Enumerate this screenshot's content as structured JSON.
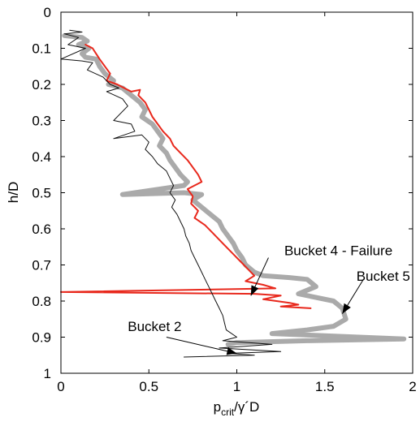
{
  "chart_data": {
    "type": "line",
    "title": "",
    "xlabel": {
      "main": "p",
      "sub": "crit",
      "rest": "/γ´D"
    },
    "ylabel": "h/D",
    "xlim": [
      0,
      2
    ],
    "ylim": [
      0,
      1
    ],
    "y_inverted": true,
    "grid": false,
    "xticks": [
      "0",
      "0.5",
      "1",
      "1.5",
      "2"
    ],
    "xtick_values": [
      0,
      0.5,
      1,
      1.5,
      2
    ],
    "yticks": [
      "0",
      "0.1",
      "0.2",
      "0.3",
      "0.4",
      "0.5",
      "0.6",
      "0.7",
      "0.8",
      "0.9",
      "1"
    ],
    "ytick_values": [
      0,
      0.1,
      0.2,
      0.3,
      0.4,
      0.5,
      0.6,
      0.7,
      0.8,
      0.9,
      1.0
    ],
    "series": [
      {
        "name": "Bucket 5",
        "color": "#aaaaaa",
        "width": 6,
        "points": [
          [
            0.02,
            0.065
          ],
          [
            0.12,
            0.07
          ],
          [
            0.15,
            0.08
          ],
          [
            0.1,
            0.09
          ],
          [
            0.16,
            0.1
          ],
          [
            0.12,
            0.115
          ],
          [
            0.14,
            0.125
          ],
          [
            0.2,
            0.13
          ],
          [
            0.22,
            0.15
          ],
          [
            0.25,
            0.17
          ],
          [
            0.3,
            0.19
          ],
          [
            0.27,
            0.2
          ],
          [
            0.35,
            0.21
          ],
          [
            0.4,
            0.23
          ],
          [
            0.45,
            0.25
          ],
          [
            0.48,
            0.27
          ],
          [
            0.46,
            0.29
          ],
          [
            0.52,
            0.31
          ],
          [
            0.55,
            0.33
          ],
          [
            0.58,
            0.35
          ],
          [
            0.56,
            0.37
          ],
          [
            0.6,
            0.39
          ],
          [
            0.62,
            0.41
          ],
          [
            0.65,
            0.43
          ],
          [
            0.68,
            0.45
          ],
          [
            0.72,
            0.47
          ],
          [
            0.7,
            0.48
          ],
          [
            0.35,
            0.505
          ],
          [
            0.7,
            0.5
          ],
          [
            0.8,
            0.505
          ],
          [
            0.75,
            0.52
          ],
          [
            0.8,
            0.54
          ],
          [
            0.85,
            0.56
          ],
          [
            0.9,
            0.58
          ],
          [
            0.92,
            0.6
          ],
          [
            0.95,
            0.62
          ],
          [
            0.98,
            0.64
          ],
          [
            1.0,
            0.66
          ],
          [
            1.03,
            0.68
          ],
          [
            1.05,
            0.7
          ],
          [
            1.1,
            0.72
          ],
          [
            1.15,
            0.73
          ],
          [
            1.3,
            0.735
          ],
          [
            1.4,
            0.74
          ],
          [
            1.45,
            0.76
          ],
          [
            1.35,
            0.78
          ],
          [
            1.55,
            0.8
          ],
          [
            1.6,
            0.82
          ],
          [
            1.62,
            0.85
          ],
          [
            1.55,
            0.87
          ],
          [
            1.4,
            0.88
          ],
          [
            1.2,
            0.89
          ],
          [
            1.95,
            0.905
          ],
          [
            1.4,
            0.91
          ],
          [
            1.0,
            0.915
          ],
          [
            0.95,
            0.92
          ]
        ]
      },
      {
        "name": "Bucket 4 - Failure",
        "color": "#e8281c",
        "width": 2,
        "points": [
          [
            0.14,
            0.09
          ],
          [
            0.18,
            0.1
          ],
          [
            0.2,
            0.115
          ],
          [
            0.22,
            0.13
          ],
          [
            0.25,
            0.15
          ],
          [
            0.28,
            0.17
          ],
          [
            0.26,
            0.19
          ],
          [
            0.32,
            0.2
          ],
          [
            0.36,
            0.21
          ],
          [
            0.4,
            0.22
          ],
          [
            0.45,
            0.215
          ],
          [
            0.44,
            0.23
          ],
          [
            0.48,
            0.25
          ],
          [
            0.5,
            0.27
          ],
          [
            0.52,
            0.29
          ],
          [
            0.55,
            0.31
          ],
          [
            0.58,
            0.33
          ],
          [
            0.62,
            0.35
          ],
          [
            0.64,
            0.37
          ],
          [
            0.68,
            0.39
          ],
          [
            0.72,
            0.41
          ],
          [
            0.75,
            0.43
          ],
          [
            0.78,
            0.45
          ],
          [
            0.8,
            0.47
          ],
          [
            0.72,
            0.49
          ],
          [
            0.75,
            0.51
          ],
          [
            0.74,
            0.53
          ],
          [
            0.78,
            0.55
          ],
          [
            0.76,
            0.57
          ],
          [
            0.82,
            0.59
          ],
          [
            0.86,
            0.61
          ],
          [
            0.9,
            0.63
          ],
          [
            0.94,
            0.65
          ],
          [
            0.98,
            0.67
          ],
          [
            1.02,
            0.69
          ],
          [
            1.06,
            0.71
          ],
          [
            1.1,
            0.73
          ],
          [
            1.05,
            0.745
          ],
          [
            1.15,
            0.755
          ],
          [
            1.22,
            0.765
          ],
          [
            0.0,
            0.775
          ],
          [
            1.1,
            0.78
          ],
          [
            1.25,
            0.785
          ],
          [
            1.15,
            0.795
          ],
          [
            1.3,
            0.805
          ],
          [
            1.35,
            0.81
          ],
          [
            1.25,
            0.815
          ],
          [
            1.42,
            0.82
          ]
        ]
      },
      {
        "name": "Bucket 2",
        "color": "#111111",
        "width": 1,
        "points": [
          [
            0.05,
            0.05
          ],
          [
            0.12,
            0.055
          ],
          [
            0.02,
            0.06
          ],
          [
            0.1,
            0.07
          ],
          [
            0.04,
            0.09
          ],
          [
            0.14,
            0.1
          ],
          [
            0.0,
            0.13
          ],
          [
            0.12,
            0.135
          ],
          [
            0.18,
            0.14
          ],
          [
            0.15,
            0.16
          ],
          [
            0.24,
            0.18
          ],
          [
            0.28,
            0.2
          ],
          [
            0.33,
            0.21
          ],
          [
            0.26,
            0.22
          ],
          [
            0.35,
            0.24
          ],
          [
            0.38,
            0.26
          ],
          [
            0.3,
            0.3
          ],
          [
            0.4,
            0.31
          ],
          [
            0.42,
            0.33
          ],
          [
            0.3,
            0.35
          ],
          [
            0.46,
            0.34
          ],
          [
            0.5,
            0.36
          ],
          [
            0.48,
            0.38
          ],
          [
            0.52,
            0.4
          ],
          [
            0.55,
            0.42
          ],
          [
            0.6,
            0.44
          ],
          [
            0.62,
            0.46
          ],
          [
            0.64,
            0.48
          ],
          [
            0.62,
            0.5
          ],
          [
            0.65,
            0.52
          ],
          [
            0.63,
            0.54
          ],
          [
            0.66,
            0.56
          ],
          [
            0.68,
            0.58
          ],
          [
            0.7,
            0.6
          ],
          [
            0.71,
            0.62
          ],
          [
            0.73,
            0.64
          ],
          [
            0.74,
            0.66
          ],
          [
            0.76,
            0.68
          ],
          [
            0.78,
            0.7
          ],
          [
            0.8,
            0.72
          ],
          [
            0.82,
            0.74
          ],
          [
            0.84,
            0.76
          ],
          [
            0.86,
            0.78
          ],
          [
            0.88,
            0.8
          ],
          [
            0.9,
            0.82
          ],
          [
            0.92,
            0.84
          ],
          [
            0.93,
            0.86
          ],
          [
            0.94,
            0.88
          ],
          [
            1.0,
            0.9
          ],
          [
            0.92,
            0.91
          ],
          [
            1.2,
            0.92
          ],
          [
            0.9,
            0.93
          ],
          [
            1.25,
            0.94
          ],
          [
            0.95,
            0.945
          ],
          [
            1.1,
            0.95
          ],
          [
            0.7,
            0.955
          ]
        ]
      }
    ],
    "annotations": [
      {
        "text": "Bucket 4 - Failure",
        "arrow_to": [
          1.08,
          0.785
        ],
        "label_at": [
          1.27,
          0.66
        ],
        "tail_at": [
          1.18,
          0.68
        ]
      },
      {
        "text": "Bucket 5",
        "arrow_to": [
          1.6,
          0.835
        ],
        "label_at": [
          1.68,
          0.73
        ],
        "tail_at": [
          1.72,
          0.74
        ]
      },
      {
        "text": "Bucket 2",
        "arrow_to": [
          1.0,
          0.945
        ],
        "label_at": [
          0.38,
          0.87
        ],
        "tail_at": [
          0.6,
          0.9
        ]
      }
    ]
  }
}
